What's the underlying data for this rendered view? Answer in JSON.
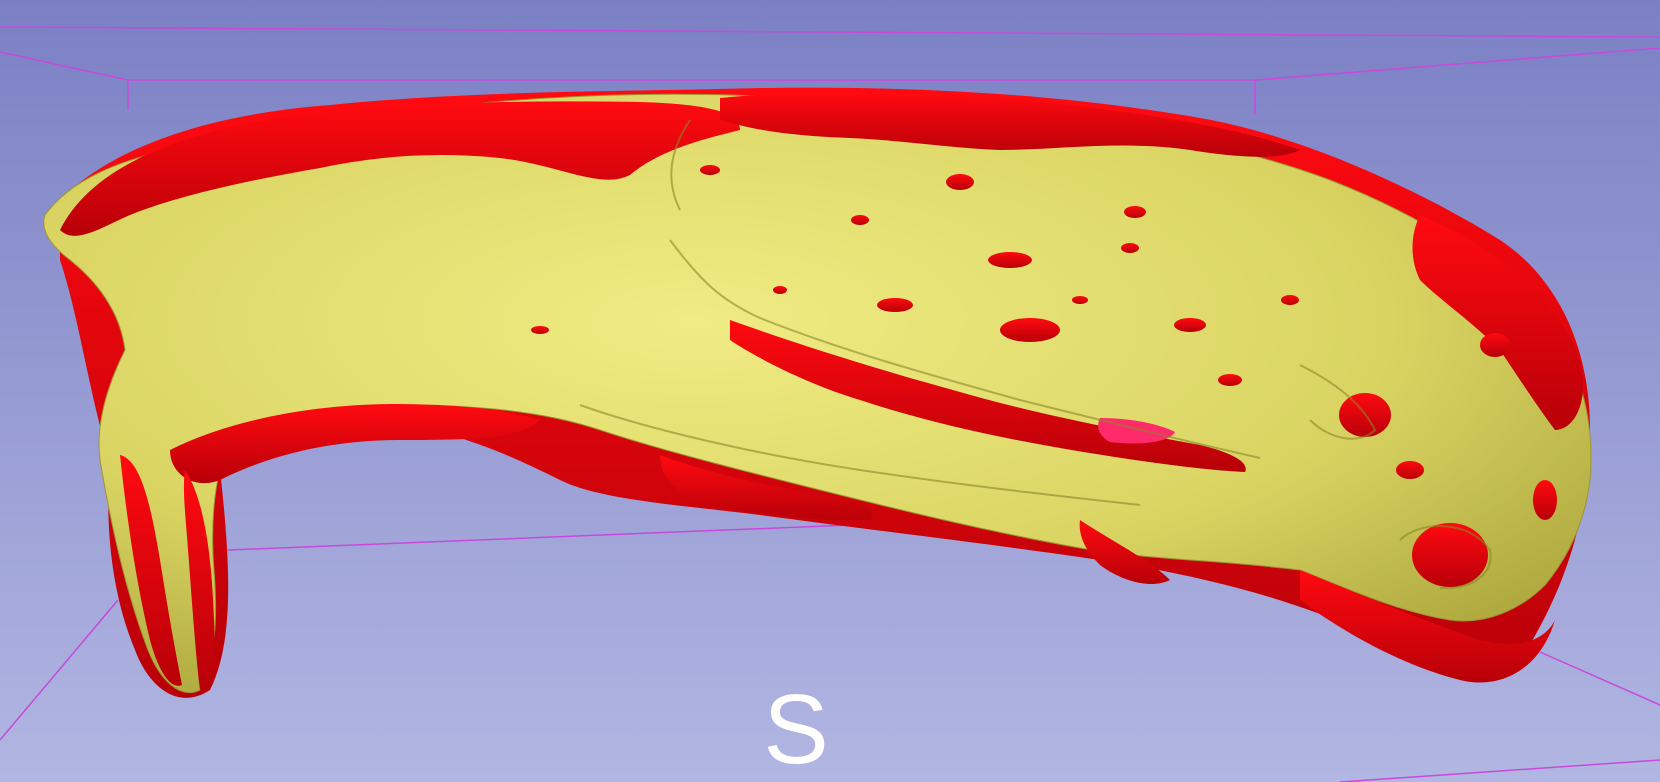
{
  "view": {
    "background_top": "#7b80c4",
    "background_bottom": "#b2b6e2",
    "bounding_box_color": "#c848dc",
    "orientation_label": "S"
  },
  "model": {
    "surface_color": "#e8e26a",
    "overlay_color": "#e8000c",
    "highlight_color": "#ff2a6a"
  }
}
